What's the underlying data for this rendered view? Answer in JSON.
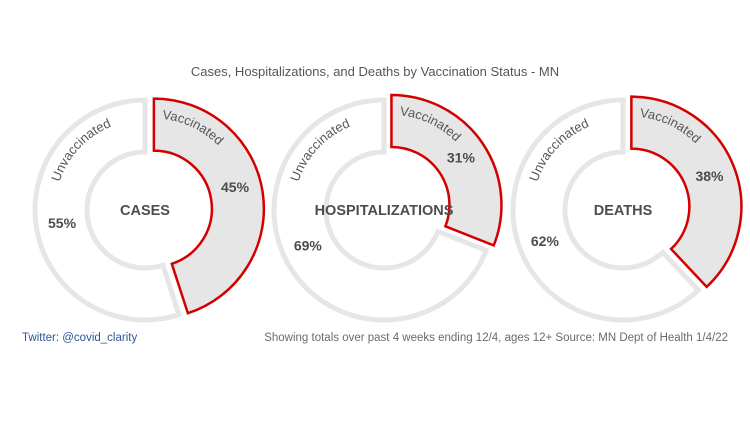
{
  "title": "Cases, Hospitalizations, and Deaths by Vaccination Status - MN",
  "footer": {
    "left": "Twitter: @covid_clarity",
    "right": "Showing totals over past 4 weeks ending 12/4, ages 12+   Source: MN Dept of Health  1/4/22"
  },
  "colors": {
    "vaccinated_fill": "#e6e6e6",
    "vaccinated_stroke": "#d40000",
    "unvaccinated_fill": "#ffffff",
    "unvaccinated_stroke": "#e6e6e6"
  },
  "chart_data": [
    {
      "type": "pie",
      "center_label": "CASES",
      "slices": [
        {
          "label": "Vaccinated",
          "value": 45,
          "value_label": "45%"
        },
        {
          "label": "Unvaccinated",
          "value": 55,
          "value_label": "55%"
        }
      ]
    },
    {
      "type": "pie",
      "center_label": "HOSPITALIZATIONS",
      "slices": [
        {
          "label": "Vaccinated",
          "value": 31,
          "value_label": "31%"
        },
        {
          "label": "Unvaccinated",
          "value": 69,
          "value_label": "69%"
        }
      ]
    },
    {
      "type": "pie",
      "center_label": "DEATHS",
      "slices": [
        {
          "label": "Vaccinated",
          "value": 38,
          "value_label": "38%"
        },
        {
          "label": "Unvaccinated",
          "value": 62,
          "value_label": "62%"
        }
      ]
    }
  ]
}
